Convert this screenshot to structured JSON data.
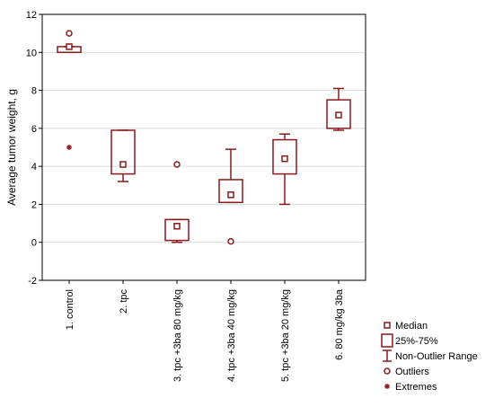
{
  "chart_data": {
    "type": "boxplot",
    "ylabel": "Average tumor weight, g",
    "ylim": [
      -2,
      12
    ],
    "yticks": [
      -2,
      0,
      2,
      4,
      6,
      8,
      10,
      12
    ],
    "grid": true,
    "color": "#8b1a1a",
    "categories": [
      "1. control",
      "2. tpc",
      "3. tpc +3ba 80 mg/kg",
      "4. tpc +3ba 40 mg/kg",
      "5. tpc +3ba 20 mg/kg",
      "6. 80 mg/kg 3ba"
    ],
    "groups": [
      {
        "median": 10.3,
        "q1": 10.0,
        "q3": 10.3,
        "whisker_low": 10.0,
        "whisker_high": 10.3,
        "outliers": [
          11.0
        ],
        "extremes": [
          5.0
        ]
      },
      {
        "median": 4.1,
        "q1": 3.6,
        "q3": 5.9,
        "whisker_low": 3.2,
        "whisker_high": 5.9,
        "outliers": [],
        "extremes": []
      },
      {
        "median": 0.85,
        "q1": 0.1,
        "q3": 1.2,
        "whisker_low": 0.0,
        "whisker_high": 1.2,
        "outliers": [
          4.1
        ],
        "extremes": []
      },
      {
        "median": 2.5,
        "q1": 2.1,
        "q3": 3.3,
        "whisker_low": 2.1,
        "whisker_high": 4.9,
        "outliers": [
          0.05
        ],
        "extremes": []
      },
      {
        "median": 4.4,
        "q1": 3.6,
        "q3": 5.4,
        "whisker_low": 2.0,
        "whisker_high": 5.7,
        "outliers": [],
        "extremes": []
      },
      {
        "median": 6.7,
        "q1": 6.0,
        "q3": 7.5,
        "whisker_low": 5.9,
        "whisker_high": 8.1,
        "outliers": [],
        "extremes": []
      }
    ],
    "legend": {
      "placement": "bottom-right",
      "items": [
        {
          "symbol": "median",
          "label": "Median"
        },
        {
          "symbol": "box",
          "label": "25%-75%"
        },
        {
          "symbol": "whisker",
          "label": "Non-Outlier Range"
        },
        {
          "symbol": "outlier",
          "label": "Outliers"
        },
        {
          "symbol": "extreme",
          "label": "Extremes"
        }
      ]
    }
  }
}
